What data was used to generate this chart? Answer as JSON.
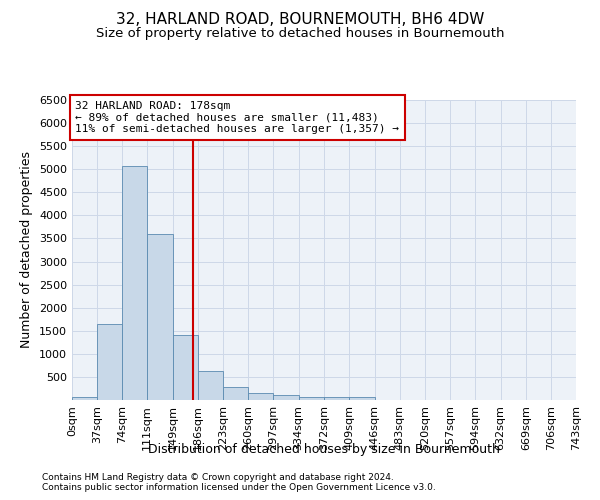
{
  "title": "32, HARLAND ROAD, BOURNEMOUTH, BH6 4DW",
  "subtitle": "Size of property relative to detached houses in Bournemouth",
  "xlabel": "Distribution of detached houses by size in Bournemouth",
  "ylabel": "Number of detached properties",
  "footer_line1": "Contains HM Land Registry data © Crown copyright and database right 2024.",
  "footer_line2": "Contains public sector information licensed under the Open Government Licence v3.0.",
  "bin_edges": [
    0,
    37,
    74,
    111,
    149,
    186,
    223,
    260,
    297,
    334,
    372,
    409,
    446,
    483,
    520,
    557,
    594,
    632,
    669,
    706,
    743
  ],
  "bin_labels": [
    "0sqm",
    "37sqm",
    "74sqm",
    "111sqm",
    "149sqm",
    "186sqm",
    "223sqm",
    "260sqm",
    "297sqm",
    "334sqm",
    "372sqm",
    "409sqm",
    "446sqm",
    "483sqm",
    "520sqm",
    "557sqm",
    "594sqm",
    "632sqm",
    "669sqm",
    "706sqm",
    "743sqm"
  ],
  "bar_heights": [
    75,
    1640,
    5060,
    3600,
    1410,
    620,
    290,
    145,
    100,
    75,
    55,
    55,
    0,
    0,
    0,
    0,
    0,
    0,
    0,
    0
  ],
  "bar_color": "#c8d8e8",
  "bar_edge_color": "#5a8ab0",
  "property_size": 178,
  "vline_color": "#cc0000",
  "annotation_title": "32 HARLAND ROAD: 178sqm",
  "annotation_line2": "← 89% of detached houses are smaller (11,483)",
  "annotation_line3": "11% of semi-detached houses are larger (1,357) →",
  "annotation_box_color": "#ffffff",
  "annotation_border_color": "#cc0000",
  "ylim": [
    0,
    6500
  ],
  "yticks": [
    0,
    500,
    1000,
    1500,
    2000,
    2500,
    3000,
    3500,
    4000,
    4500,
    5000,
    5500,
    6000,
    6500
  ],
  "grid_color": "#ced8e8",
  "background_color": "#edf2f8",
  "title_fontsize": 11,
  "subtitle_fontsize": 9.5,
  "axis_label_fontsize": 9,
  "tick_fontsize": 8,
  "annotation_fontsize": 8
}
